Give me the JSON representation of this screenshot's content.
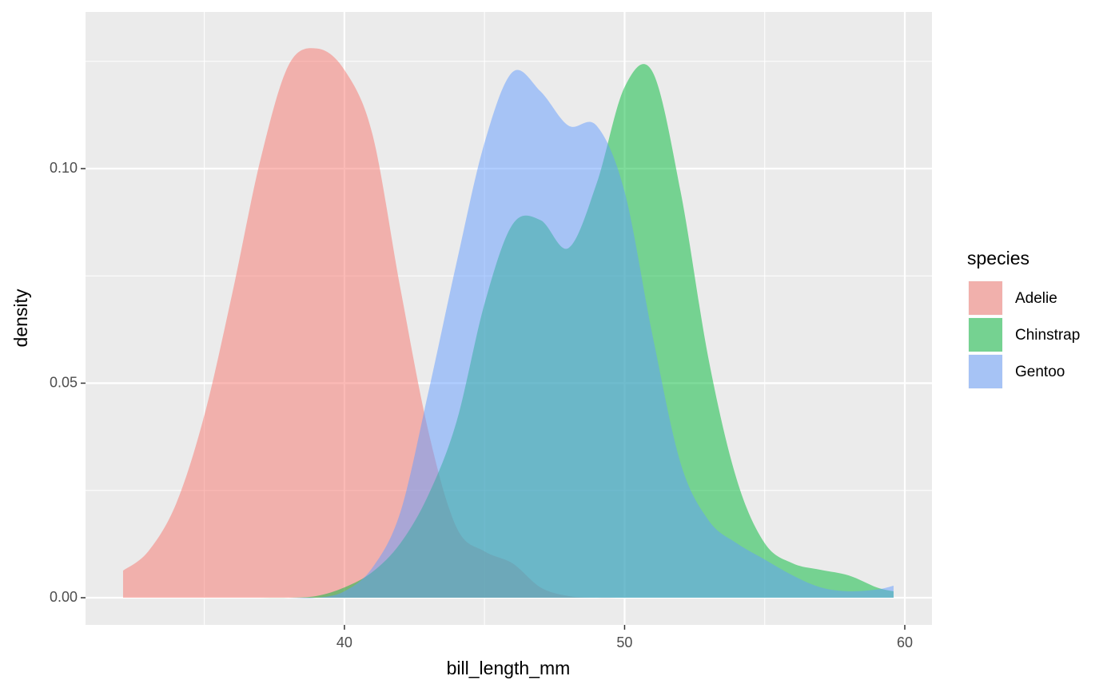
{
  "chart_data": {
    "type": "density",
    "x_label": "bill_length_mm",
    "y_label": "density",
    "legend_title": "species",
    "legend_position": "right",
    "x": [
      32.1,
      33,
      34,
      35,
      36,
      37,
      38,
      39,
      40,
      41,
      42,
      43,
      44,
      45,
      46,
      47,
      48,
      49,
      50,
      51,
      52,
      53,
      54,
      55,
      56,
      57,
      58,
      59,
      59.6
    ],
    "series": [
      {
        "name": "Adelie",
        "color": "#F8766D",
        "values": [
          0.0063,
          0.0108,
          0.022,
          0.0425,
          0.071,
          0.102,
          0.124,
          0.128,
          0.123,
          0.108,
          0.072,
          0.0387,
          0.0164,
          0.0108,
          0.008,
          0.0024,
          0.0004,
          0,
          0,
          0,
          0,
          0,
          0,
          0,
          0,
          0,
          0,
          0,
          0
        ]
      },
      {
        "name": "Chinstrap",
        "color": "#00BA38",
        "values": [
          0,
          0,
          0,
          0,
          0,
          0,
          0,
          0.0004,
          0.0024,
          0.006,
          0.0127,
          0.024,
          0.041,
          0.0685,
          0.087,
          0.088,
          0.0815,
          0.0965,
          0.119,
          0.1225,
          0.0946,
          0.0555,
          0.0276,
          0.0127,
          0.008,
          0.0065,
          0.0052,
          0.0024,
          0.0015
        ]
      },
      {
        "name": "Gentoo",
        "color": "#619CFF",
        "values": [
          0,
          0,
          0,
          0,
          0,
          0,
          0,
          0,
          0.0015,
          0.007,
          0.02,
          0.048,
          0.078,
          0.106,
          0.1225,
          0.118,
          0.11,
          0.11,
          0.0946,
          0.061,
          0.0313,
          0.018,
          0.0127,
          0.0089,
          0.0052,
          0.0024,
          0.0015,
          0.0019,
          0.0028
        ]
      }
    ],
    "alpha": 0.5,
    "xlim": [
      30.76,
      60.97
    ],
    "ylim": [
      -0.00633,
      0.1365
    ],
    "xticks": [
      40,
      50,
      60
    ],
    "yticks": [
      {
        "value": 0,
        "label": "0.00"
      },
      {
        "value": 0.05,
        "label": "0.05"
      },
      {
        "value": 0.1,
        "label": "0.10"
      }
    ],
    "x_minor_ticks": [
      35,
      45,
      55
    ],
    "y_minor_ticks": [
      0.025,
      0.075,
      0.125
    ],
    "grid": true
  }
}
